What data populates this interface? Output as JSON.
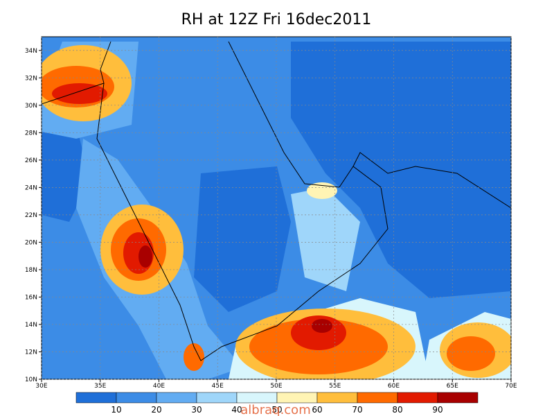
{
  "title": "RH at 12Z Fri 16dec2011",
  "watermark": "albraq.com",
  "xlim": [
    30,
    70
  ],
  "ylim": [
    10,
    35
  ],
  "xticks": [
    {
      "value": 30,
      "label": "30E"
    },
    {
      "value": 35,
      "label": "35E"
    },
    {
      "value": 40,
      "label": "40E"
    },
    {
      "value": 45,
      "label": "45E"
    },
    {
      "value": 50,
      "label": "50E"
    },
    {
      "value": 55,
      "label": "55E"
    },
    {
      "value": 60,
      "label": "60E"
    },
    {
      "value": 65,
      "label": "65E"
    },
    {
      "value": 70,
      "label": "70E"
    }
  ],
  "yticks": [
    {
      "value": 10,
      "label": "10N"
    },
    {
      "value": 12,
      "label": "12N"
    },
    {
      "value": 14,
      "label": "14N"
    },
    {
      "value": 16,
      "label": "16N"
    },
    {
      "value": 18,
      "label": "18N"
    },
    {
      "value": 20,
      "label": "20N"
    },
    {
      "value": 22,
      "label": "22N"
    },
    {
      "value": 24,
      "label": "24N"
    },
    {
      "value": 26,
      "label": "26N"
    },
    {
      "value": 28,
      "label": "28N"
    },
    {
      "value": 30,
      "label": "30N"
    },
    {
      "value": 32,
      "label": "32N"
    },
    {
      "value": 34,
      "label": "34N"
    }
  ],
  "colorbar": {
    "levels": [
      10,
      20,
      30,
      40,
      50,
      60,
      70,
      80,
      90
    ],
    "colors": [
      "#1f6fd8",
      "#3c8ce6",
      "#62acf2",
      "#9fd6fa",
      "#d8f6fc",
      "#fff4b4",
      "#ffbe3c",
      "#ff6a00",
      "#e21a00",
      "#a80000"
    ]
  }
}
